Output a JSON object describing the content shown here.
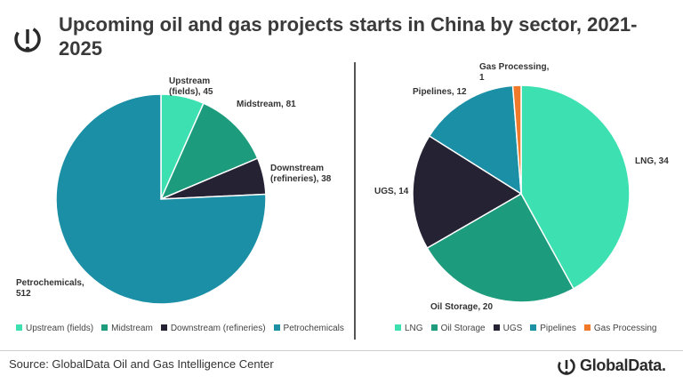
{
  "header": {
    "title": "Upcoming oil and gas projects starts in China by sector, 2021-2025",
    "logo_icon": "globaldata-circle-icon"
  },
  "footer": {
    "source": "Source: GlobalData Oil and Gas Intelligence Center",
    "brand": "GlobalData."
  },
  "colors": {
    "upstream": "#3de0b0",
    "midstream": "#1c9b7d",
    "downstream": "#252234",
    "petrochemicals": "#1a8fa6",
    "lng": "#3de0b0",
    "oil_storage": "#1c9b7d",
    "ugs": "#252234",
    "pipelines": "#1a8fa6",
    "gas_processing": "#f07a2a"
  },
  "chart_data": [
    {
      "type": "pie",
      "title": "",
      "slices": [
        {
          "name": "Upstream (fields)",
          "value": 45,
          "label": [
            "Upstream",
            "(fields), 45"
          ],
          "color": "#3de0b0"
        },
        {
          "name": "Midstream",
          "value": 81,
          "label": [
            "Midstream, 81"
          ],
          "color": "#1c9b7d"
        },
        {
          "name": "Downstream (refineries)",
          "value": 38,
          "label": [
            "Downstream",
            "(refineries), 38"
          ],
          "color": "#252234"
        },
        {
          "name": "Petrochemicals",
          "value": 512,
          "label": [
            "Petrochemicals,",
            "512"
          ],
          "color": "#1a8fa6"
        }
      ],
      "legend": [
        "Upstream (fields)",
        "Midstream",
        "Downstream (refineries)",
        "Petrochemicals"
      ],
      "legend_position": "bottom"
    },
    {
      "type": "pie",
      "title": "",
      "slices": [
        {
          "name": "LNG",
          "value": 34,
          "label": [
            "LNG, 34"
          ],
          "color": "#3de0b0"
        },
        {
          "name": "Oil Storage",
          "value": 20,
          "label": [
            "Oil Storage, 20"
          ],
          "color": "#1c9b7d"
        },
        {
          "name": "UGS",
          "value": 14,
          "label": [
            "UGS, 14"
          ],
          "color": "#252234"
        },
        {
          "name": "Pipelines",
          "value": 12,
          "label": [
            "Pipelines, 12"
          ],
          "color": "#1a8fa6"
        },
        {
          "name": "Gas Processing",
          "value": 1,
          "label": [
            "Gas Processing,",
            "1"
          ],
          "color": "#f07a2a"
        }
      ],
      "legend": [
        "LNG",
        "Oil Storage",
        "UGS",
        "Pipelines",
        "Gas Processing"
      ],
      "legend_position": "bottom"
    }
  ]
}
